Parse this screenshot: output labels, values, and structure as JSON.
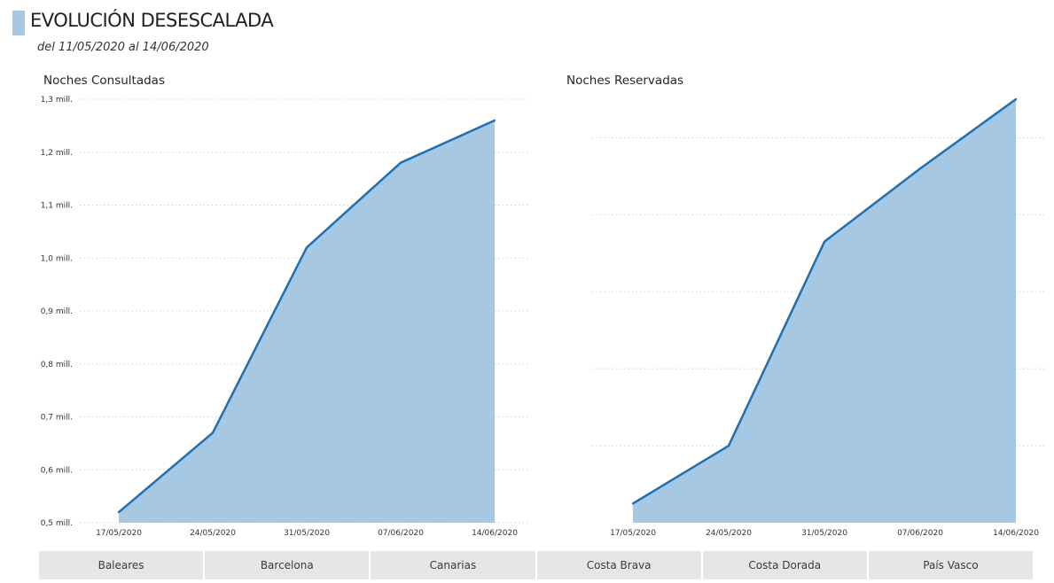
{
  "header": {
    "title": "EVOLUCIÓN DESESCALADA",
    "subtitle": "del 11/05/2020 al 14/06/2020"
  },
  "colors": {
    "area_fill": "#a6c8e3",
    "line": "#1f6fb2",
    "grid": "#d0d0d0",
    "accent_bar": "#a6c8e3"
  },
  "chart_data": [
    {
      "type": "area",
      "title": "Noches Consultadas",
      "x": [
        "17/05/2020",
        "24/05/2020",
        "31/05/2020",
        "07/06/2020",
        "14/06/2020"
      ],
      "values": [
        520000,
        670000,
        1020000,
        1180000,
        1260000
      ],
      "ylim": [
        500000,
        1300000
      ],
      "yticks": [
        500000,
        600000,
        700000,
        800000,
        900000,
        1000000,
        1100000,
        1200000,
        1300000
      ],
      "ytick_labels": [
        "0,5 mill.",
        "0,6 mill.",
        "0,7 mill.",
        "0,8 mill.",
        "0,9 mill.",
        "1,0 mill.",
        "1,1 mill.",
        "1,2 mill.",
        "1,3 mill."
      ],
      "grid": true
    },
    {
      "type": "area",
      "title": "Noches Reservadas",
      "x": [
        "17/05/2020",
        "24/05/2020",
        "31/05/2020",
        "07/06/2020",
        "14/06/2020"
      ],
      "values": [
        0.05,
        0.2,
        0.73,
        0.92,
        1.1
      ],
      "ylim": [
        0,
        1.1
      ],
      "yticks": [
        0.2,
        0.4,
        0.6,
        0.8,
        1.0
      ],
      "ytick_labels": [
        "",
        "",
        "",
        "",
        ""
      ],
      "grid": true
    }
  ],
  "tabs": [
    {
      "label": "Baleares"
    },
    {
      "label": "Barcelona"
    },
    {
      "label": "Canarias"
    },
    {
      "label": "Costa Brava"
    },
    {
      "label": "Costa Dorada"
    },
    {
      "label": "País Vasco"
    }
  ]
}
